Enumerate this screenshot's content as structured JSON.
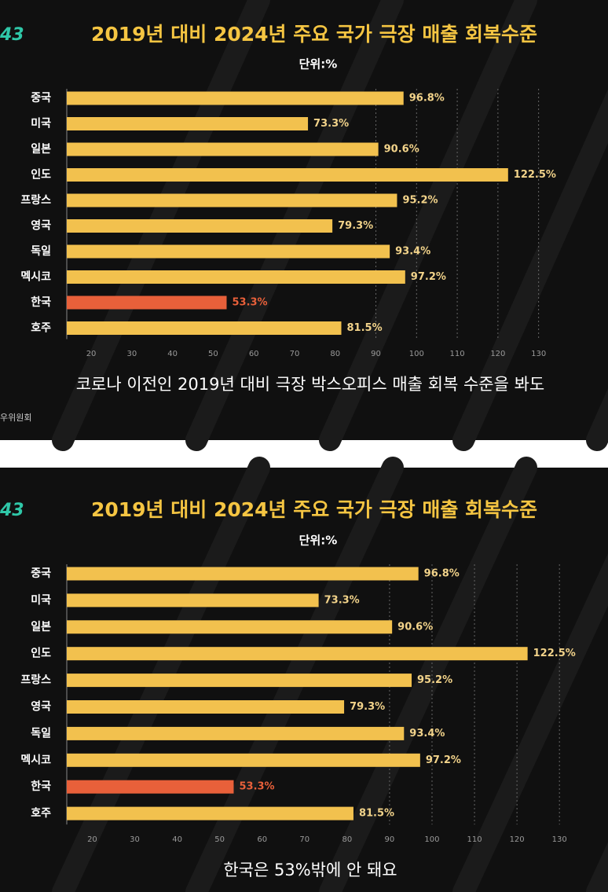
{
  "chart_data": [
    {
      "type": "bar",
      "orientation": "horizontal",
      "logo": "43",
      "title": "2019년 대비 2024년 주요 국가 극장 매출 회복수준",
      "subtitle": "단위:%",
      "categories": [
        "중국",
        "미국",
        "일본",
        "인도",
        "프랑스",
        "영국",
        "독일",
        "멕시코",
        "한국",
        "호주"
      ],
      "values": [
        96.8,
        73.3,
        90.6,
        122.5,
        95.2,
        79.3,
        93.4,
        97.2,
        53.3,
        81.5
      ],
      "value_labels": [
        "96.8%",
        "73.3%",
        "90.6%",
        "122.5%",
        "95.2%",
        "79.3%",
        "93.4%",
        "97.2%",
        "53.3%",
        "81.5%"
      ],
      "colors": [
        "#f2c14e",
        "#f2c14e",
        "#f2c14e",
        "#f2c14e",
        "#f2c14e",
        "#f2c14e",
        "#f2c14e",
        "#f2c14e",
        "#e8603a",
        "#f2c14e"
      ],
      "xlim": [
        14,
        132
      ],
      "xticks": [
        20,
        30,
        40,
        50,
        60,
        70,
        80,
        90,
        100,
        110,
        120,
        130
      ],
      "grid": true,
      "caption": "코로나 이전인 2019년 대비 극장 박스오피스 매출 회복 수준을 봐도",
      "source": "우위원회"
    },
    {
      "type": "bar",
      "orientation": "horizontal",
      "logo": "43",
      "title": "2019년 대비 2024년 주요 국가 극장 매출 회복수준",
      "subtitle": "단위:%",
      "categories": [
        "중국",
        "미국",
        "일본",
        "인도",
        "프랑스",
        "영국",
        "독일",
        "멕시코",
        "한국",
        "호주"
      ],
      "values": [
        96.8,
        73.3,
        90.6,
        122.5,
        95.2,
        79.3,
        93.4,
        97.2,
        53.3,
        81.5
      ],
      "value_labels": [
        "96.8%",
        "73.3%",
        "90.6%",
        "122.5%",
        "95.2%",
        "79.3%",
        "93.4%",
        "97.2%",
        "53.3%",
        "81.5%"
      ],
      "colors": [
        "#f2c14e",
        "#f2c14e",
        "#f2c14e",
        "#f2c14e",
        "#f2c14e",
        "#f2c14e",
        "#f2c14e",
        "#f2c14e",
        "#e8603a",
        "#f2c14e"
      ],
      "xlim": [
        14,
        132
      ],
      "xticks": [
        20,
        30,
        40,
        50,
        60,
        70,
        80,
        90,
        100,
        110,
        120,
        130
      ],
      "grid": true,
      "caption": "한국은 53%밖에 안 돼요"
    }
  ]
}
